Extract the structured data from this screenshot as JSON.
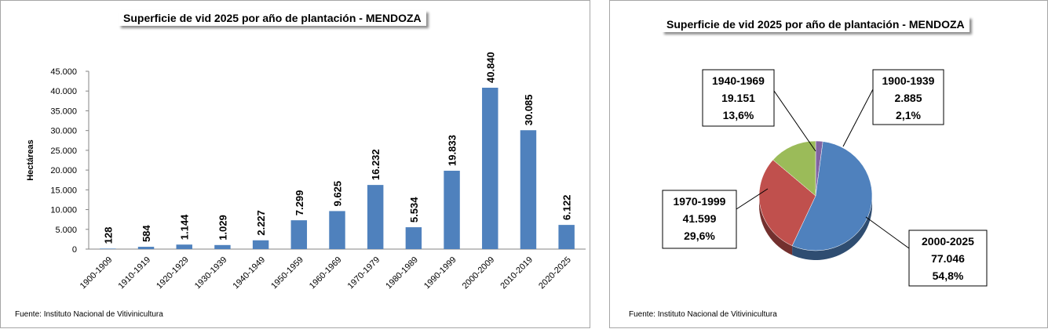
{
  "chart_data": [
    {
      "type": "bar",
      "title": "Superficie de vid 2025 por año de plantación - MENDOZA",
      "ylabel": "Hectáreas",
      "ylim": [
        0,
        45000
      ],
      "y_ticks": [
        "0",
        "5.000",
        "10.000",
        "15.000",
        "20.000",
        "25.000",
        "30.000",
        "35.000",
        "40.000",
        "45.000"
      ],
      "categories": [
        "1900-1909",
        "1910-1919",
        "1920-1929",
        "1930-1939",
        "1940-1949",
        "1950-1959",
        "1960-1969",
        "1970-1979",
        "1980-1989",
        "1990-1999",
        "2000-2009",
        "2010-2019",
        "2020-2025"
      ],
      "values": [
        128,
        584,
        1144,
        1029,
        2227,
        7299,
        9625,
        16232,
        5534,
        19833,
        40840,
        30085,
        6122
      ],
      "value_labels": [
        "128",
        "584",
        "1.144",
        "1.029",
        "2.227",
        "7.299",
        "9.625",
        "16.232",
        "5.534",
        "19.833",
        "40.840",
        "30.085",
        "6.122"
      ],
      "bar_color": "#4f81bd",
      "source": "Fuente: Instituto Nacional de Vitivinicultura"
    },
    {
      "type": "pie",
      "title": "Superficie de vid 2025 por año de plantación - MENDOZA",
      "slices": [
        {
          "label": "1900-1939",
          "value": 2885,
          "value_text": "2.885",
          "percent": "2,1%",
          "color": "#8064a2"
        },
        {
          "label": "2000-2025",
          "value": 77046,
          "value_text": "77.046",
          "percent": "54,8%",
          "color": "#4f81bd"
        },
        {
          "label": "1970-1999",
          "value": 41599,
          "value_text": "41.599",
          "percent": "29,6%",
          "color": "#c0504d"
        },
        {
          "label": "1940-1969",
          "value": 19151,
          "value_text": "19.151",
          "percent": "13,6%",
          "color": "#9bbb59"
        }
      ],
      "source": "Fuente: Instituto Nacional de Vitivinicultura"
    }
  ]
}
